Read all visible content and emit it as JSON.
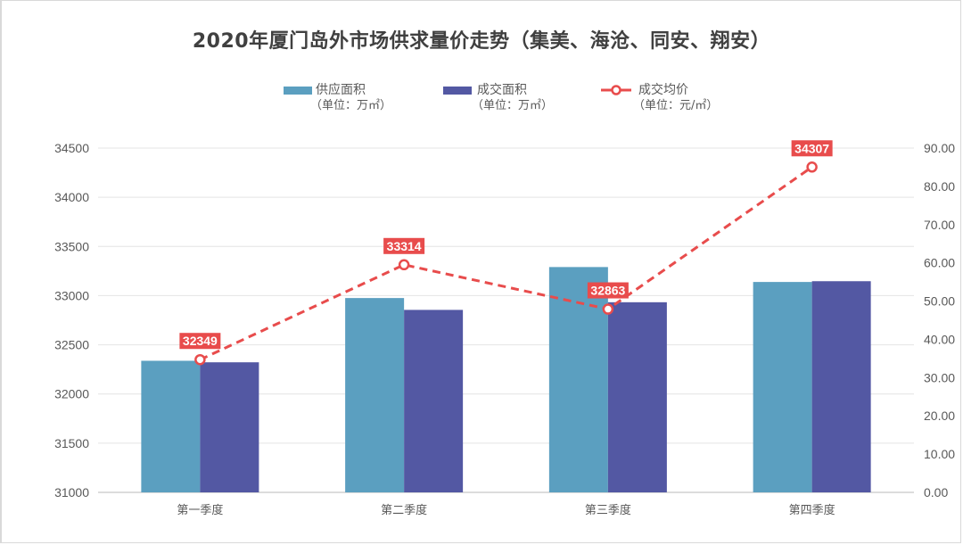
{
  "chart_data": {
    "type": "bar+line",
    "title": "2020年厦门岛外市场供求量价走势（集美、海沧、同安、翔安）",
    "categories": [
      "第一季度",
      "第二季度",
      "第三季度",
      "第四季度"
    ],
    "series": [
      {
        "name": "供应面积",
        "unit": "（单位：万㎡）",
        "type": "bar",
        "axis": "right",
        "color": "#5b9fc0",
        "values": [
          34.4,
          50.8,
          58.9,
          55.0
        ]
      },
      {
        "name": "成交面积",
        "unit": "（单位：万㎡）",
        "type": "bar",
        "axis": "right",
        "color": "#5358a3",
        "values": [
          34.0,
          47.7,
          49.7,
          55.2
        ]
      },
      {
        "name": "成交均价",
        "unit": "（单位：元/㎡）",
        "type": "line",
        "axis": "left",
        "color": "#e84c4c",
        "values": [
          32349,
          33314,
          32863,
          34307
        ],
        "data_labels": [
          "32349",
          "33314",
          "32863",
          "34307"
        ]
      }
    ],
    "left_axis": {
      "ylim": [
        31000,
        34500
      ],
      "ticks": [
        "31000",
        "31500",
        "32000",
        "32500",
        "33000",
        "33500",
        "34000",
        "34500"
      ]
    },
    "right_axis": {
      "ylim": [
        0,
        90
      ],
      "ticks": [
        "0.00",
        "10.00",
        "20.00",
        "30.00",
        "40.00",
        "50.00",
        "60.00",
        "70.00",
        "80.00",
        "90.00"
      ]
    },
    "xlabel": "",
    "ylabel": "",
    "grid": true,
    "legend_position": "top"
  },
  "legend": {
    "items": [
      {
        "label": "供应面积",
        "unit": "（单位：万㎡）"
      },
      {
        "label": "成交面积",
        "unit": "（单位：万㎡）"
      },
      {
        "label": "成交均价",
        "unit": "（单位：元/㎡）"
      }
    ]
  }
}
